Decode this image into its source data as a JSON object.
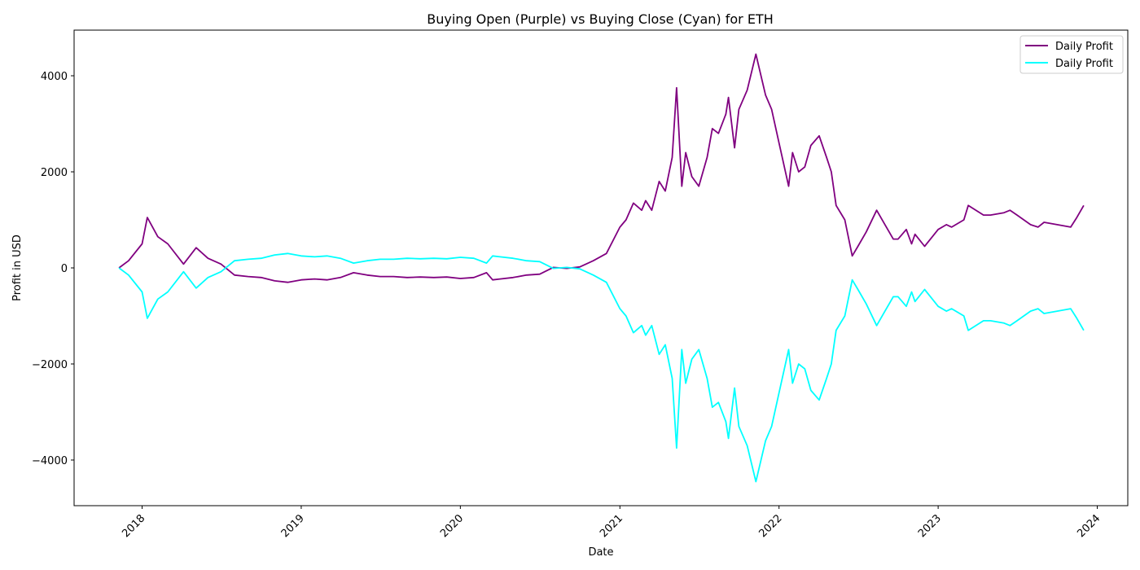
{
  "chart_data": {
    "type": "line",
    "title": "Buying Open (Purple) vs Buying Close (Cyan) for ETH",
    "xlabel": "Date",
    "ylabel": "Profit in USD",
    "xlim": [
      "2017-07-29",
      "2024-03-11"
    ],
    "ylim": [
      -4950,
      4950
    ],
    "x_ticks": [
      "2018",
      "2019",
      "2020",
      "2021",
      "2022",
      "2023",
      "2024"
    ],
    "y_ticks": [
      -4000,
      -2000,
      0,
      2000,
      4000
    ],
    "grid": false,
    "legend_position": "top-right",
    "x": [
      "2017-11-09",
      "2017-12-01",
      "2018-01-01",
      "2018-01-13",
      "2018-02-06",
      "2018-03-01",
      "2018-04-06",
      "2018-05-05",
      "2018-06-01",
      "2018-07-01",
      "2018-08-01",
      "2018-09-01",
      "2018-10-01",
      "2018-11-01",
      "2018-12-01",
      "2019-01-01",
      "2019-02-01",
      "2019-03-01",
      "2019-04-01",
      "2019-05-01",
      "2019-06-01",
      "2019-07-01",
      "2019-08-01",
      "2019-09-01",
      "2019-10-01",
      "2019-11-01",
      "2019-12-01",
      "2020-01-01",
      "2020-02-01",
      "2020-03-01",
      "2020-03-15",
      "2020-04-01",
      "2020-05-01",
      "2020-06-01",
      "2020-07-01",
      "2020-08-01",
      "2020-09-01",
      "2020-10-01",
      "2020-11-01",
      "2020-12-01",
      "2021-01-01",
      "2021-01-15",
      "2021-02-01",
      "2021-02-20",
      "2021-03-01",
      "2021-03-15",
      "2021-04-01",
      "2021-04-15",
      "2021-05-01",
      "2021-05-11",
      "2021-05-23",
      "2021-06-01",
      "2021-06-15",
      "2021-07-01",
      "2021-07-20",
      "2021-08-01",
      "2021-08-15",
      "2021-09-01",
      "2021-09-07",
      "2021-09-21",
      "2021-10-01",
      "2021-10-20",
      "2021-11-09",
      "2021-12-01",
      "2021-12-15",
      "2022-01-01",
      "2022-01-23",
      "2022-02-01",
      "2022-02-15",
      "2022-03-01",
      "2022-03-15",
      "2022-04-03",
      "2022-04-20",
      "2022-05-01",
      "2022-05-12",
      "2022-06-01",
      "2022-06-18",
      "2022-07-01",
      "2022-07-20",
      "2022-08-13",
      "2022-09-01",
      "2022-09-20",
      "2022-10-01",
      "2022-10-20",
      "2022-11-01",
      "2022-11-09",
      "2022-12-01",
      "2023-01-01",
      "2023-01-20",
      "2023-02-01",
      "2023-03-01",
      "2023-03-11",
      "2023-04-15",
      "2023-05-01",
      "2023-06-01",
      "2023-06-15",
      "2023-07-01",
      "2023-08-01",
      "2023-08-18",
      "2023-09-01",
      "2023-10-01",
      "2023-11-01",
      "2023-11-15",
      "2023-12-01"
    ],
    "series": [
      {
        "name": "Daily Profit",
        "color": "#800080",
        "values": [
          0,
          150,
          500,
          1050,
          650,
          500,
          80,
          420,
          200,
          80,
          -150,
          -180,
          -200,
          -270,
          -300,
          -250,
          -230,
          -250,
          -200,
          -100,
          -150,
          -180,
          -180,
          -200,
          -190,
          -200,
          -190,
          -220,
          -200,
          -100,
          -250,
          -230,
          -200,
          -150,
          -130,
          10,
          -10,
          20,
          150,
          300,
          850,
          1000,
          1350,
          1200,
          1400,
          1200,
          1800,
          1600,
          2300,
          3750,
          1700,
          2400,
          1900,
          1700,
          2300,
          2900,
          2800,
          3200,
          3550,
          2500,
          3300,
          3700,
          4450,
          3600,
          3300,
          2600,
          1700,
          2400,
          2000,
          2100,
          2550,
          2750,
          2300,
          2000,
          1300,
          1000,
          250,
          450,
          750,
          1200,
          900,
          600,
          600,
          800,
          500,
          700,
          450,
          800,
          900,
          850,
          1000,
          1300,
          1100,
          1100,
          1150,
          1200,
          1100,
          900,
          850,
          950,
          900,
          850,
          1050,
          1300
        ]
      },
      {
        "name": "Daily Profit",
        "color": "#00ffff",
        "values": [
          0,
          -150,
          -500,
          -1050,
          -650,
          -500,
          -80,
          -420,
          -200,
          -80,
          150,
          180,
          200,
          270,
          300,
          250,
          230,
          250,
          200,
          100,
          150,
          180,
          180,
          200,
          190,
          200,
          190,
          220,
          200,
          100,
          250,
          230,
          200,
          150,
          130,
          -10,
          10,
          -20,
          -150,
          -300,
          -850,
          -1000,
          -1350,
          -1200,
          -1400,
          -1200,
          -1800,
          -1600,
          -2300,
          -3750,
          -1700,
          -2400,
          -1900,
          -1700,
          -2300,
          -2900,
          -2800,
          -3200,
          -3550,
          -2500,
          -3300,
          -3700,
          -4450,
          -3600,
          -3300,
          -2600,
          -1700,
          -2400,
          -2000,
          -2100,
          -2550,
          -2750,
          -2300,
          -2000,
          -1300,
          -1000,
          -250,
          -450,
          -750,
          -1200,
          -900,
          -600,
          -600,
          -800,
          -500,
          -700,
          -450,
          -800,
          -900,
          -850,
          -1000,
          -1300,
          -1100,
          -1100,
          -1150,
          -1200,
          -1100,
          -900,
          -850,
          -950,
          -900,
          -850,
          -1050,
          -1300
        ]
      }
    ]
  }
}
